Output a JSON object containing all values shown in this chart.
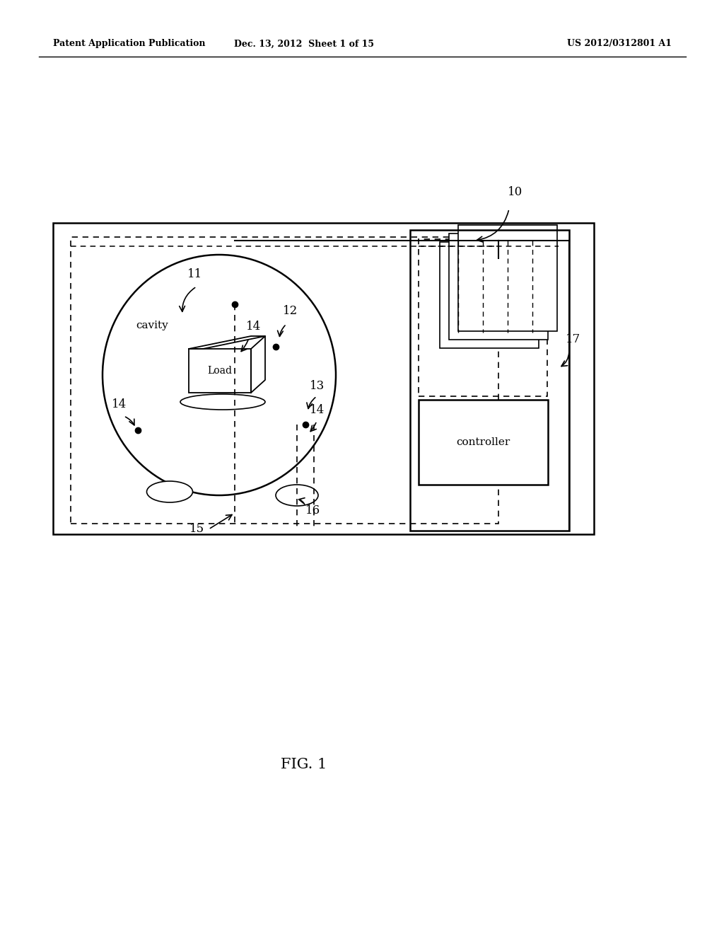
{
  "bg_color": "#ffffff",
  "fig_width": 10.24,
  "fig_height": 13.2,
  "header_left": "Patent Application Publication",
  "header_mid": "Dec. 13, 2012  Sheet 1 of 15",
  "header_right": "US 2012/0312801 A1",
  "fig_label": "FIG. 1",
  "label_10": "10",
  "label_11": "11",
  "label_12": "12",
  "label_13": "13",
  "label_14a": "14",
  "label_14b": "14",
  "label_14c": "14",
  "label_14d": "14",
  "label_15": "15",
  "label_16": "16",
  "label_17": "17",
  "label_cavity": "cavity",
  "label_load": "Load",
  "label_controller": "controller"
}
